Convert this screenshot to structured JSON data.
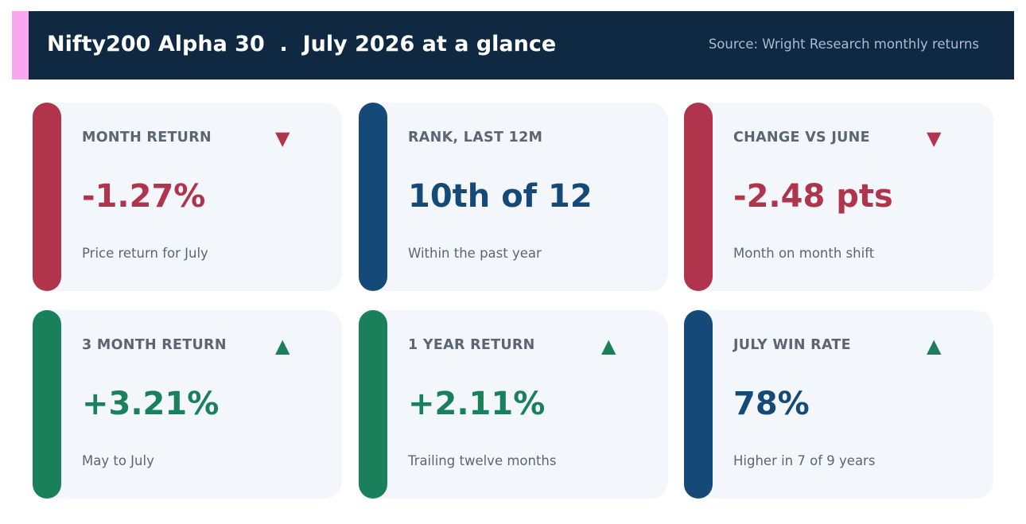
{
  "header": {
    "title": "Nifty200 Alpha 30  .  July 2026 at a glance",
    "source": "Source: Wright Research monthly returns"
  },
  "colors": {
    "header_bg": "#0f2942",
    "header_accent": "#f9a8f0",
    "negative": "#b0344b",
    "positive": "#1a805c",
    "neutral": "#154a78",
    "card_bg": "#f3f7fb",
    "muted_text": "#5c6573"
  },
  "cards": [
    {
      "label": "MONTH RETURN",
      "value": "-1.27%",
      "sub": "Price return for July",
      "trend": "down",
      "arrow": "▼",
      "arrow_icon": "triangle-down-icon"
    },
    {
      "label": "RANK, LAST 12M",
      "value": "10th of 12",
      "sub": "Within the past year",
      "trend": "neutral",
      "arrow": "",
      "arrow_icon": ""
    },
    {
      "label": "CHANGE VS JUNE",
      "value": "-2.48 pts",
      "sub": "Month on month shift",
      "trend": "down",
      "arrow": "▼",
      "arrow_icon": "triangle-down-icon"
    },
    {
      "label": "3 MONTH RETURN",
      "value": "+3.21%",
      "sub": "May to July",
      "trend": "up",
      "arrow": "▲",
      "arrow_icon": "triangle-up-icon"
    },
    {
      "label": "1 YEAR RETURN",
      "value": "+2.11%",
      "sub": "Trailing twelve months",
      "trend": "up",
      "arrow": "▲",
      "arrow_icon": "triangle-up-icon"
    },
    {
      "label": "JULY WIN RATE",
      "value": "78%",
      "sub": "Higher in 7 of 9 years",
      "trend": "up",
      "arrow": "▲",
      "arrow_icon": "triangle-up-icon"
    }
  ]
}
